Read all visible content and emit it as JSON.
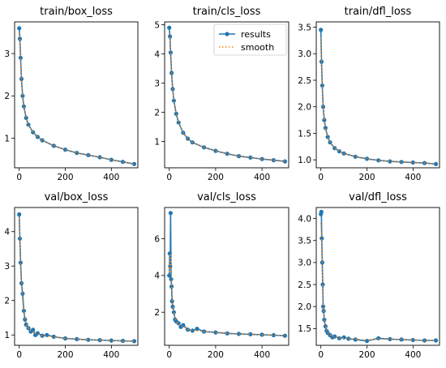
{
  "figure": {
    "legend_panel": "train/cls_loss",
    "legend_placement": "upper-right"
  },
  "colors": {
    "results": "#1f77b4",
    "smooth": "#ff7f0e",
    "axes": "#000000"
  },
  "chart_data": [
    {
      "type": "line",
      "title": "train/box_loss",
      "xlim": [
        -20,
        515
      ],
      "ylim": [
        0.3,
        3.75
      ],
      "xticks": [
        0,
        200,
        400
      ],
      "yticks": [
        1,
        2,
        3
      ],
      "ytick_labels": [
        "1",
        "2",
        "3"
      ],
      "legend": false,
      "series": [
        {
          "name": "results",
          "x": [
            0,
            3,
            6,
            10,
            15,
            20,
            30,
            40,
            60,
            80,
            100,
            150,
            200,
            250,
            300,
            350,
            400,
            450,
            499
          ],
          "y": [
            3.6,
            3.35,
            2.9,
            2.4,
            2.0,
            1.75,
            1.48,
            1.32,
            1.14,
            1.03,
            0.95,
            0.82,
            0.73,
            0.65,
            0.6,
            0.55,
            0.49,
            0.44,
            0.39
          ]
        },
        {
          "name": "smooth",
          "x": [
            0,
            3,
            6,
            10,
            15,
            20,
            30,
            40,
            60,
            80,
            100,
            150,
            200,
            250,
            300,
            350,
            400,
            450,
            499
          ],
          "y": [
            3.5,
            3.3,
            2.85,
            2.38,
            1.99,
            1.74,
            1.47,
            1.31,
            1.14,
            1.03,
            0.95,
            0.82,
            0.73,
            0.65,
            0.6,
            0.55,
            0.49,
            0.44,
            0.39
          ]
        }
      ]
    },
    {
      "type": "line",
      "title": "train/cls_loss",
      "xlim": [
        -20,
        515
      ],
      "ylim": [
        0.1,
        5.1
      ],
      "xticks": [
        0,
        200,
        400
      ],
      "yticks": [
        1,
        2,
        3,
        4,
        5
      ],
      "ytick_labels": [
        "1",
        "2",
        "3",
        "4",
        "5"
      ],
      "legend": true,
      "series": [
        {
          "name": "results",
          "x": [
            0,
            3,
            6,
            10,
            15,
            20,
            30,
            40,
            60,
            80,
            100,
            150,
            200,
            250,
            300,
            350,
            400,
            450,
            499
          ],
          "y": [
            4.9,
            4.6,
            4.05,
            3.35,
            2.8,
            2.4,
            1.95,
            1.65,
            1.3,
            1.1,
            0.97,
            0.8,
            0.68,
            0.58,
            0.5,
            0.45,
            0.4,
            0.36,
            0.32
          ]
        },
        {
          "name": "smooth",
          "x": [
            0,
            3,
            6,
            10,
            15,
            20,
            30,
            40,
            60,
            80,
            100,
            150,
            200,
            250,
            300,
            350,
            400,
            450,
            499
          ],
          "y": [
            4.7,
            4.5,
            4.0,
            3.32,
            2.78,
            2.38,
            1.94,
            1.64,
            1.3,
            1.1,
            0.97,
            0.8,
            0.68,
            0.58,
            0.5,
            0.45,
            0.4,
            0.36,
            0.32
          ]
        }
      ]
    },
    {
      "type": "line",
      "title": "train/dfl_loss",
      "xlim": [
        -20,
        515
      ],
      "ylim": [
        0.85,
        3.6
      ],
      "xticks": [
        0,
        200,
        400
      ],
      "yticks": [
        1.0,
        1.5,
        2.0,
        2.5,
        3.0,
        3.5
      ],
      "ytick_labels": [
        "1.0",
        "1.5",
        "2.0",
        "2.5",
        "3.0",
        "3.5"
      ],
      "legend": false,
      "series": [
        {
          "name": "results",
          "x": [
            0,
            3,
            6,
            10,
            15,
            20,
            30,
            40,
            60,
            80,
            100,
            150,
            200,
            250,
            300,
            350,
            400,
            450,
            499
          ],
          "y": [
            3.45,
            2.85,
            2.4,
            2.0,
            1.75,
            1.6,
            1.43,
            1.33,
            1.22,
            1.16,
            1.12,
            1.06,
            1.02,
            0.99,
            0.97,
            0.96,
            0.95,
            0.94,
            0.92
          ]
        },
        {
          "name": "smooth",
          "x": [
            0,
            3,
            6,
            10,
            15,
            20,
            30,
            40,
            60,
            80,
            100,
            150,
            200,
            250,
            300,
            350,
            400,
            450,
            499
          ],
          "y": [
            3.3,
            2.8,
            2.37,
            1.99,
            1.74,
            1.59,
            1.43,
            1.33,
            1.22,
            1.16,
            1.12,
            1.06,
            1.02,
            0.99,
            0.97,
            0.96,
            0.95,
            0.94,
            0.92
          ]
        }
      ]
    },
    {
      "type": "line",
      "title": "val/box_loss",
      "xlim": [
        -20,
        515
      ],
      "ylim": [
        0.7,
        4.7
      ],
      "xticks": [
        0,
        200,
        400
      ],
      "yticks": [
        1,
        2,
        3,
        4
      ],
      "ytick_labels": [
        "1",
        "2",
        "3",
        "4"
      ],
      "legend": false,
      "series": [
        {
          "name": "results",
          "x": [
            0,
            3,
            6,
            10,
            15,
            20,
            25,
            30,
            40,
            50,
            60,
            70,
            80,
            100,
            120,
            150,
            200,
            250,
            300,
            350,
            400,
            450,
            499
          ],
          "y": [
            4.5,
            3.8,
            3.1,
            2.5,
            2.2,
            1.7,
            1.45,
            1.3,
            1.2,
            1.1,
            1.15,
            1.0,
            1.05,
            0.98,
            1.0,
            0.95,
            0.9,
            0.88,
            0.86,
            0.85,
            0.84,
            0.83,
            0.82
          ]
        },
        {
          "name": "smooth",
          "x": [
            0,
            3,
            6,
            10,
            15,
            20,
            30,
            40,
            60,
            80,
            100,
            150,
            200,
            250,
            300,
            350,
            400,
            450,
            499
          ],
          "y": [
            4.4,
            3.75,
            3.05,
            2.45,
            2.0,
            1.7,
            1.32,
            1.18,
            1.08,
            1.03,
            0.99,
            0.94,
            0.9,
            0.88,
            0.86,
            0.85,
            0.84,
            0.83,
            0.82
          ]
        }
      ]
    },
    {
      "type": "line",
      "title": "val/cls_loss",
      "xlim": [
        -20,
        515
      ],
      "ylim": [
        0.2,
        7.7
      ],
      "xticks": [
        0,
        200,
        400
      ],
      "yticks": [
        2,
        4,
        6
      ],
      "ytick_labels": [
        "2",
        "4",
        "6"
      ],
      "legend": false,
      "series": [
        {
          "name": "results",
          "x": [
            0,
            2,
            4,
            6,
            8,
            10,
            12,
            15,
            20,
            25,
            30,
            40,
            50,
            60,
            80,
            100,
            120,
            150,
            200,
            250,
            300,
            350,
            400,
            450,
            499
          ],
          "y": [
            4.0,
            5.2,
            4.5,
            7.4,
            3.8,
            3.4,
            2.6,
            2.3,
            2.0,
            1.6,
            1.5,
            1.4,
            1.2,
            1.3,
            1.05,
            1.0,
            1.1,
            0.95,
            0.9,
            0.85,
            0.82,
            0.8,
            0.78,
            0.75,
            0.72
          ]
        },
        {
          "name": "smooth",
          "x": [
            0,
            3,
            6,
            10,
            15,
            20,
            30,
            40,
            60,
            80,
            100,
            150,
            200,
            250,
            300,
            350,
            400,
            450,
            499
          ],
          "y": [
            4.2,
            4.8,
            5.2,
            3.7,
            2.4,
            1.95,
            1.5,
            1.35,
            1.22,
            1.08,
            1.02,
            0.95,
            0.9,
            0.85,
            0.82,
            0.8,
            0.78,
            0.75,
            0.72
          ]
        }
      ]
    },
    {
      "type": "line",
      "title": "val/dfl_loss",
      "xlim": [
        -20,
        515
      ],
      "ylim": [
        1.12,
        4.25
      ],
      "xticks": [
        0,
        200,
        400
      ],
      "yticks": [
        1.5,
        2.0,
        2.5,
        3.0,
        3.5,
        4.0
      ],
      "ytick_labels": [
        "1.5",
        "2.0",
        "2.5",
        "3.0",
        "3.5",
        "4.0"
      ],
      "legend": false,
      "series": [
        {
          "name": "results",
          "x": [
            0,
            2,
            4,
            6,
            8,
            10,
            12,
            15,
            20,
            25,
            30,
            40,
            50,
            60,
            80,
            100,
            120,
            150,
            200,
            250,
            300,
            350,
            400,
            450,
            499
          ],
          "y": [
            4.1,
            4.15,
            3.55,
            3.0,
            2.5,
            2.0,
            1.9,
            1.7,
            1.55,
            1.45,
            1.4,
            1.35,
            1.3,
            1.32,
            1.28,
            1.3,
            1.27,
            1.25,
            1.22,
            1.28,
            1.26,
            1.25,
            1.24,
            1.23,
            1.23
          ]
        },
        {
          "name": "smooth",
          "x": [
            0,
            3,
            6,
            10,
            15,
            20,
            30,
            40,
            60,
            80,
            100,
            150,
            200,
            250,
            300,
            350,
            400,
            450,
            499
          ],
          "y": [
            3.9,
            3.6,
            2.95,
            2.1,
            1.75,
            1.56,
            1.41,
            1.35,
            1.31,
            1.29,
            1.28,
            1.26,
            1.24,
            1.26,
            1.26,
            1.25,
            1.24,
            1.23,
            1.23
          ]
        }
      ]
    }
  ]
}
